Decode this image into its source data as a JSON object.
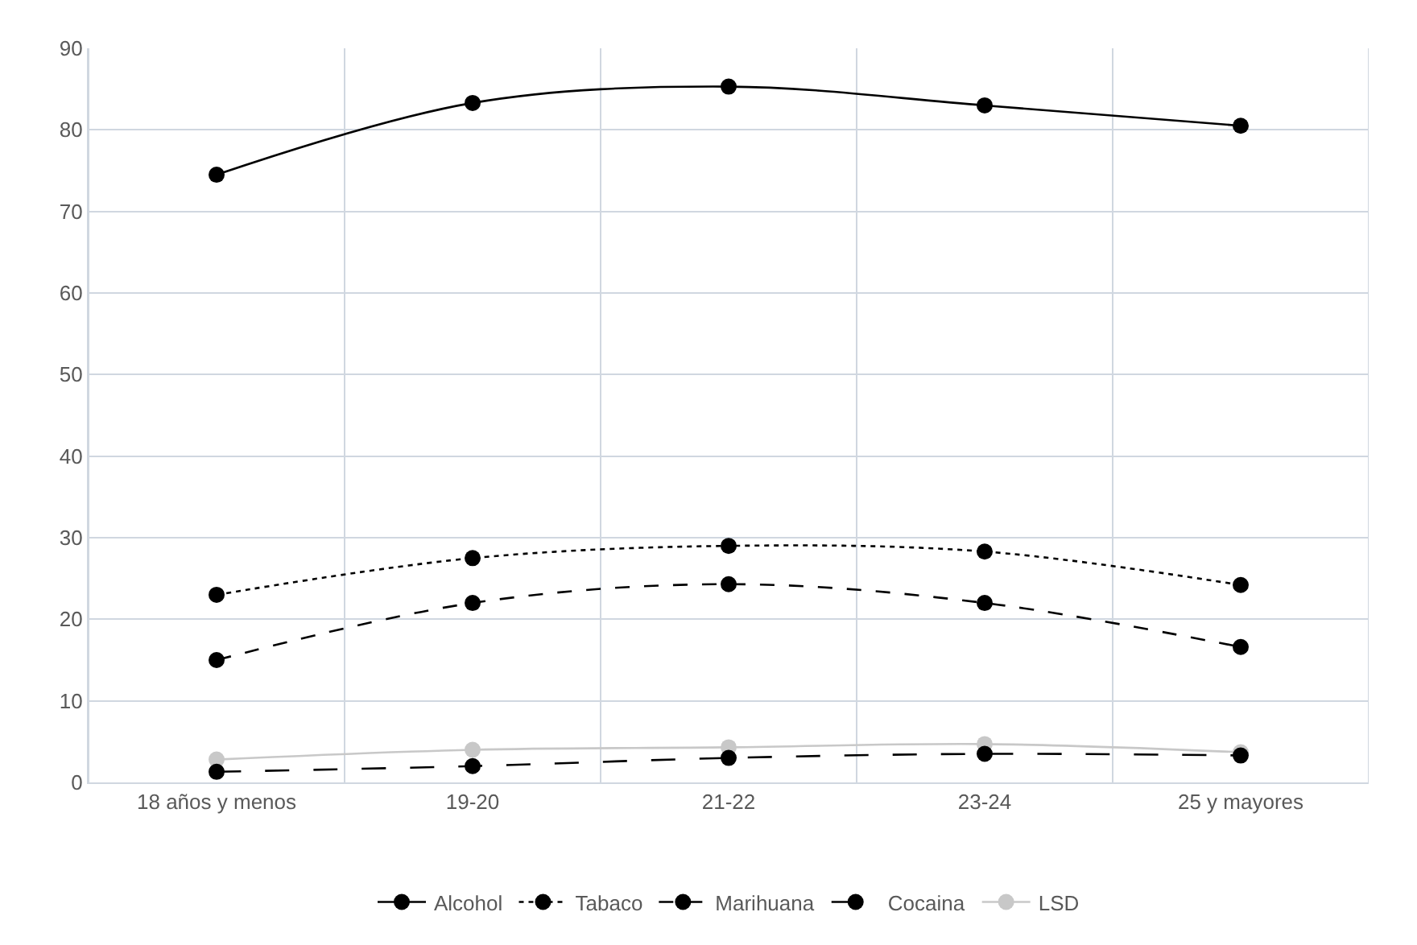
{
  "chart_data": {
    "type": "line",
    "categories": [
      "18 años y menos",
      "19-20",
      "21-22",
      "23-24",
      "25 y mayores"
    ],
    "series": [
      {
        "name": "Alcohol",
        "color": "#000000",
        "line_style": "solid",
        "values": [
          74.5,
          83.3,
          85.3,
          83,
          80.5
        ]
      },
      {
        "name": "Tabaco",
        "color": "#000000",
        "line_style": "dotted",
        "values": [
          23,
          27.5,
          29,
          28.3,
          24.2
        ]
      },
      {
        "name": "Marihuana",
        "color": "#000000",
        "line_style": "dashed",
        "values": [
          15,
          22,
          24.3,
          22,
          16.6
        ]
      },
      {
        "name": "Cocaina",
        "color": "#000000",
        "line_style": "longdash",
        "values": [
          1.3,
          2,
          3,
          3.5,
          3.3
        ]
      },
      {
        "name": "LSD",
        "color": "#c8c8c8",
        "line_style": "solid",
        "values": [
          2.8,
          4,
          4.3,
          4.7,
          3.7
        ]
      }
    ],
    "ylim": [
      0,
      90
    ],
    "yticks": [
      0,
      10,
      20,
      30,
      40,
      50,
      60,
      70,
      80,
      90
    ],
    "grid": true,
    "legend": "bottom",
    "marker": "circle"
  }
}
